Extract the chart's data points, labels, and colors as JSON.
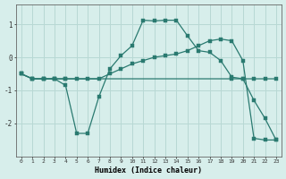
{
  "xlabel": "Humidex (Indice chaleur)",
  "background_color": "#d7eeeb",
  "grid_color": "#b8d8d4",
  "line_color": "#2a7a70",
  "line1_x": [
    0,
    1,
    2,
    3,
    4,
    5,
    6,
    7,
    8,
    9,
    10,
    11,
    12,
    13,
    14,
    15,
    16,
    17,
    18,
    19,
    20,
    21,
    22,
    23
  ],
  "line1_y": [
    -0.5,
    -0.65,
    -0.65,
    -0.65,
    -0.85,
    -2.3,
    -2.3,
    -1.2,
    -0.35,
    0.05,
    0.35,
    1.12,
    1.1,
    1.12,
    1.12,
    0.65,
    0.2,
    0.15,
    -0.1,
    -0.6,
    -0.65,
    -1.3,
    -1.85,
    -2.5
  ],
  "line2_x": [
    0,
    1,
    2,
    3,
    4,
    19,
    20,
    21,
    22,
    23
  ],
  "line2_y": [
    -0.5,
    -0.65,
    -0.65,
    -0.65,
    -0.65,
    -0.65,
    -0.65,
    -0.65,
    -0.65,
    -0.65
  ],
  "line3_x": [
    0,
    1,
    2,
    3,
    4,
    5,
    6,
    7,
    8,
    9,
    10,
    11,
    12,
    13,
    14,
    15,
    16,
    17,
    18,
    19,
    20,
    21,
    22,
    23
  ],
  "line3_y": [
    -0.5,
    -0.65,
    -0.65,
    -0.65,
    -0.65,
    -0.65,
    -0.65,
    -0.65,
    -0.5,
    -0.35,
    -0.2,
    -0.1,
    -0.0,
    0.05,
    0.1,
    0.2,
    0.35,
    0.5,
    0.55,
    0.5,
    -0.1,
    -2.45,
    -2.5,
    -2.5
  ],
  "ylim": [
    -3.0,
    1.6
  ],
  "xlim": [
    -0.5,
    23.5
  ],
  "yticks": [
    -2,
    -1,
    0,
    1
  ],
  "xticks": [
    0,
    1,
    2,
    3,
    4,
    5,
    6,
    7,
    8,
    9,
    10,
    11,
    12,
    13,
    14,
    15,
    16,
    17,
    18,
    19,
    20,
    21,
    22,
    23
  ]
}
